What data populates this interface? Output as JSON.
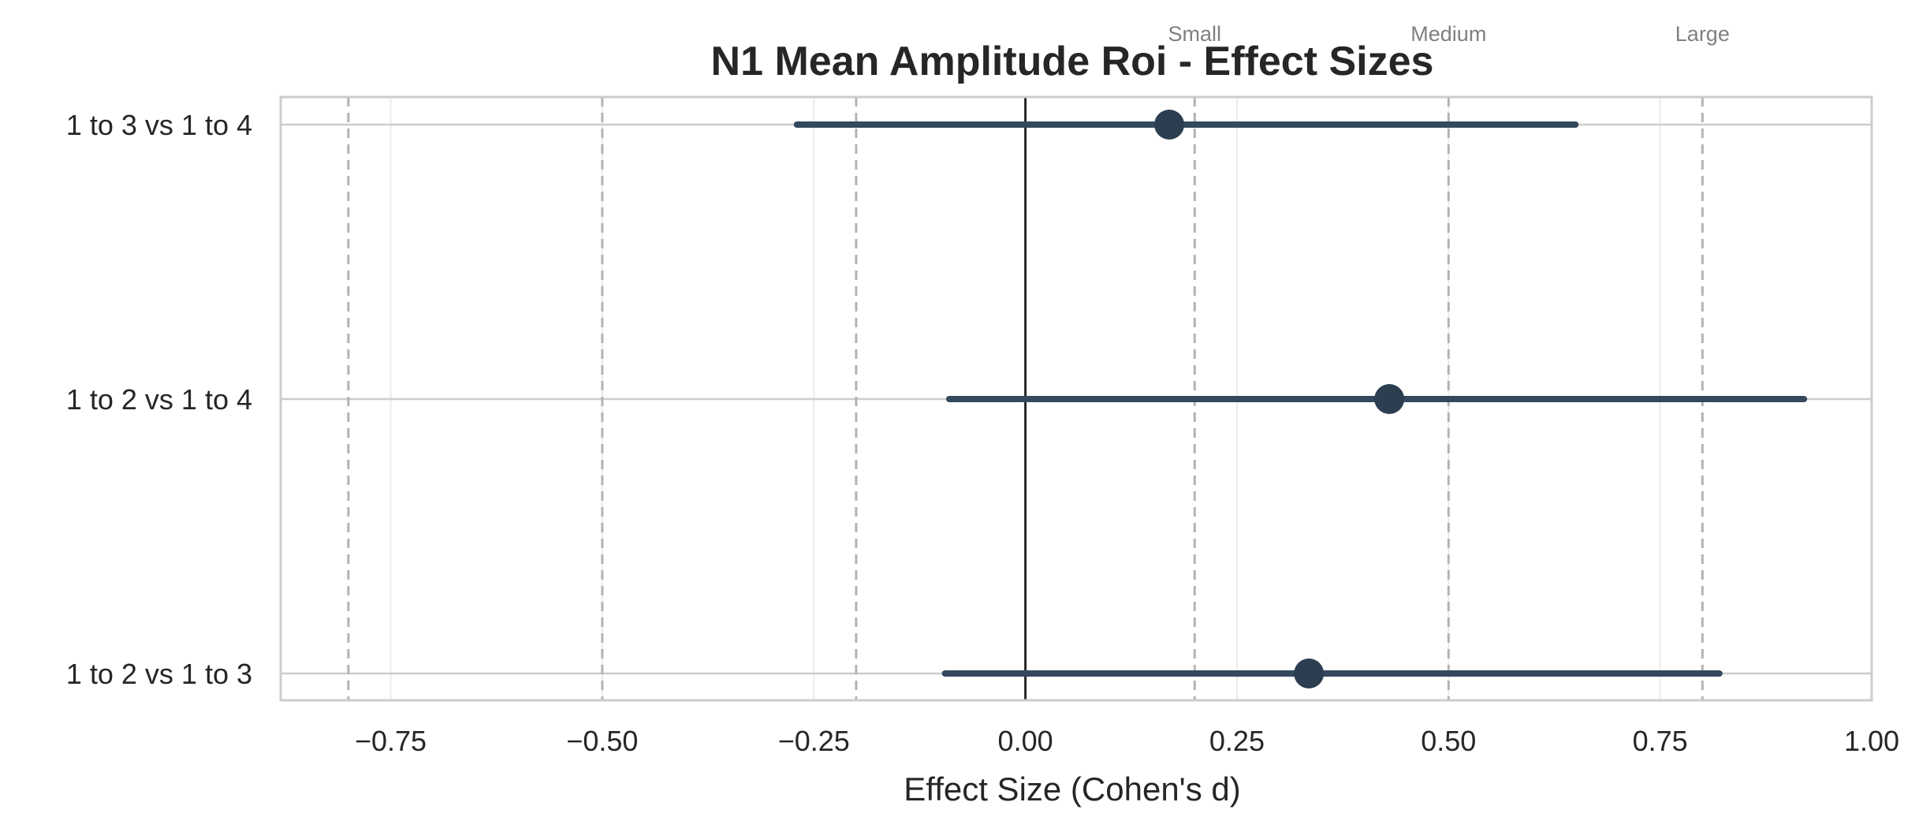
{
  "chart_data": {
    "type": "forest",
    "title": "N1 Mean Amplitude Roi - Effect Sizes",
    "xlabel": "Effect Size (Cohen's d)",
    "ylabel": "",
    "xlim": [
      -0.88,
      1.0
    ],
    "x_ticks": [
      -0.75,
      -0.5,
      -0.25,
      0.0,
      0.25,
      0.5,
      0.75,
      1.0
    ],
    "x_tick_labels": [
      "−0.75",
      "−0.50",
      "−0.25",
      "0.00",
      "0.25",
      "0.50",
      "0.75",
      "1.00"
    ],
    "grid": true,
    "reference_line": 0.0,
    "threshold_lines": [
      -0.8,
      -0.5,
      -0.2,
      0.2,
      0.5,
      0.8
    ],
    "threshold_labels": [
      {
        "label": "Small",
        "x": 0.2
      },
      {
        "label": "Medium",
        "x": 0.5
      },
      {
        "label": "Large",
        "x": 0.8
      }
    ],
    "comparisons": [
      {
        "label": "1 to 3 vs 1 to 4",
        "d": 0.17,
        "ci_low": -0.27,
        "ci_high": 0.65
      },
      {
        "label": "1 to 2 vs 1 to 4",
        "d": 0.43,
        "ci_low": -0.09,
        "ci_high": 0.92
      },
      {
        "label": "1 to 2 vs 1 to 3",
        "d": 0.335,
        "ci_low": -0.095,
        "ci_high": 0.82
      }
    ],
    "colors": {
      "point": "#2c3e50",
      "ci_line": "#34495e",
      "grid": "#ebebeb",
      "row_line": "#cccccc",
      "threshold": "#b3b3b3",
      "zero_line": "#262626",
      "frame": "#cccccc"
    }
  }
}
